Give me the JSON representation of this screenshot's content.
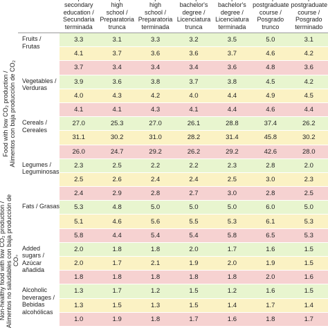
{
  "group_labels": [
    "Food with low CO₂ production /\nAlimentos con baja producción de CO₂",
    "Non-healthy food with low CO₂ production /\nAlimentos no saludables con baja producción de CO₂"
  ],
  "columns": [
    "complete\nsecondary\neducation /\nSecundaria\nterminada",
    "incomplete\nhigh\nschool /\nPreparatoria\ntrunca",
    "complete\nhigh\nschool /\nPreparatoria\nterminada",
    "incomplete\nbachelor's\ndegree /\nLicenciatura\ntrunca",
    "complete\nbachelor's\ndegree /\nLicenciatura\nterminada",
    "incomplete\npostgraduate\ncourse /\nPosgrado\ntrunco",
    "complete\npostgraduate\ncourse /\nPosgrado\nterminado"
  ],
  "categories": [
    {
      "label": "Fruits / Frutas",
      "rows": [
        [
          "3.3",
          "3.1",
          "3.3",
          "3.2",
          "3.5",
          "5.0",
          "3.1"
        ],
        [
          "4.1",
          "3.7",
          "3.6",
          "3.6",
          "3.7",
          "4.6",
          "4.2"
        ],
        [
          "3.7",
          "3.4",
          "3.4",
          "3.4",
          "3.6",
          "4.8",
          "3.6"
        ]
      ]
    },
    {
      "label": "Vegetables /\nVerduras",
      "rows": [
        [
          "3.9",
          "3.6",
          "3.8",
          "3.7",
          "3.8",
          "4.5",
          "4.2"
        ],
        [
          "4.0",
          "4.3",
          "4.2",
          "4.0",
          "4.4",
          "4.9",
          "4.5"
        ],
        [
          "4.1",
          "4.1",
          "4.3",
          "4.1",
          "4.4",
          "4.6",
          "4.4"
        ]
      ]
    },
    {
      "label": "Cereals /\nCereales",
      "rows": [
        [
          "27.0",
          "25.3",
          "27.0",
          "26.1",
          "28.8",
          "37.4",
          "26.2"
        ],
        [
          "31.1",
          "30.2",
          "31.0",
          "28.2",
          "31.4",
          "45.8",
          "30.2"
        ],
        [
          "26.0",
          "24.7",
          "29.2",
          "26.2",
          "29.2",
          "42.6",
          "28.0"
        ]
      ]
    },
    {
      "label": "Legumes /\nLeguminosas",
      "rows": [
        [
          "2.3",
          "2.5",
          "2.2",
          "2.2",
          "2.3",
          "2.8",
          "2.0"
        ],
        [
          "2.5",
          "2.6",
          "2.4",
          "2.4",
          "2.5",
          "3.0",
          "2.3"
        ],
        [
          "2.4",
          "2.9",
          "2.8",
          "2.7",
          "3.0",
          "2.8",
          "2.5"
        ]
      ]
    },
    {
      "label": "Fats / Grasas",
      "rows": [
        [
          "5.3",
          "4.8",
          "5.0",
          "5.0",
          "5.0",
          "6.0",
          "5.0"
        ],
        [
          "5.1",
          "4.6",
          "5.6",
          "5.5",
          "5.3",
          "6.1",
          "5.3"
        ],
        [
          "5.8",
          "4.4",
          "5.4",
          "5.4",
          "5.8",
          "6.5",
          "5.3"
        ]
      ]
    },
    {
      "label": "Added\nsugars /\nAzúcar\nañadida",
      "rows": [
        [
          "2.0",
          "1.8",
          "1.8",
          "2.0",
          "1.7",
          "1.6",
          "1.5"
        ],
        [
          "2.0",
          "1.7",
          "2.1",
          "1.9",
          "2.0",
          "1.9",
          "1.5"
        ],
        [
          "1.8",
          "1.8",
          "1.8",
          "1.8",
          "1.8",
          "2.0",
          "1.6"
        ]
      ]
    },
    {
      "label": "Alcoholic\nbeverages /\nBebidas\nalcohólicas",
      "rows": [
        [
          "1.3",
          "1.7",
          "1.2",
          "1.5",
          "1.2",
          "1.6",
          "1.5"
        ],
        [
          "1.3",
          "1.5",
          "1.3",
          "1.5",
          "1.4",
          "1.7",
          "1.4"
        ],
        [
          "1.0",
          "1.9",
          "1.8",
          "1.7",
          "1.6",
          "1.8",
          "1.7"
        ]
      ]
    }
  ]
}
